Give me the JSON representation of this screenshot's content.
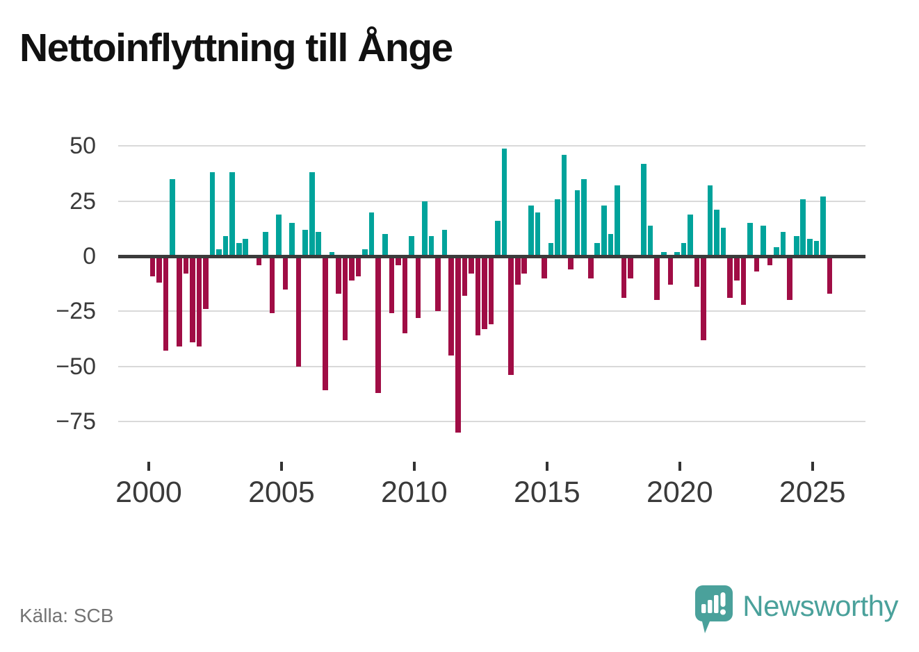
{
  "title": "Nettoinflyttning till Ånge",
  "source": "Källa: SCB",
  "brand": {
    "name": "Newsworthy",
    "color": "#4aa19b"
  },
  "chart_data": {
    "type": "bar",
    "title": "Nettoinflyttning till Ånge",
    "frequency": "quarterly",
    "start_year": 2000,
    "start_quarter": 1,
    "values": [
      -9,
      -12,
      -43,
      35,
      -41,
      -8,
      -39,
      -41,
      -24,
      38,
      3,
      9,
      38,
      6,
      8,
      0,
      -4,
      11,
      -26,
      19,
      -15,
      15,
      -50,
      12,
      38,
      11,
      -61,
      2,
      -17,
      -38,
      -11,
      -9,
      3,
      20,
      -62,
      10,
      -26,
      -4,
      -35,
      9,
      -28,
      25,
      9,
      -25,
      12,
      -45,
      -80,
      -18,
      -8,
      -36,
      -33,
      -31,
      16,
      49,
      -54,
      -13,
      -8,
      23,
      20,
      -10,
      6,
      26,
      46,
      -6,
      30,
      35,
      -10,
      6,
      23,
      10,
      32,
      -19,
      -10,
      0,
      42,
      14,
      -20,
      2,
      -13,
      2,
      6,
      19,
      -14,
      -38,
      32,
      21,
      13,
      -19,
      -11,
      -22,
      15,
      -7,
      14,
      -4,
      4,
      11,
      -20,
      9,
      26,
      8,
      7,
      27,
      -17
    ],
    "ylim": [
      -85,
      55
    ],
    "grid": true,
    "legend": "none",
    "positive_color": "#00a39b",
    "negative_color": "#a00d45",
    "zero_line_color": "#3b3b3b",
    "gridline_color": "#d9d9d9",
    "y_axis": {
      "ticks": [
        {
          "value": 50,
          "label": "50"
        },
        {
          "value": 25,
          "label": "25"
        },
        {
          "value": 0,
          "label": "0"
        },
        {
          "value": -25,
          "label": "−25"
        },
        {
          "value": -50,
          "label": "−50"
        },
        {
          "value": -75,
          "label": "−75"
        }
      ]
    },
    "x_axis": {
      "ticks": [
        {
          "year": 2000,
          "label": "2000"
        },
        {
          "year": 2005,
          "label": "2005"
        },
        {
          "year": 2010,
          "label": "2010"
        },
        {
          "year": 2015,
          "label": "2015"
        },
        {
          "year": 2020,
          "label": "2020"
        },
        {
          "year": 2025,
          "label": "2025"
        }
      ]
    }
  }
}
